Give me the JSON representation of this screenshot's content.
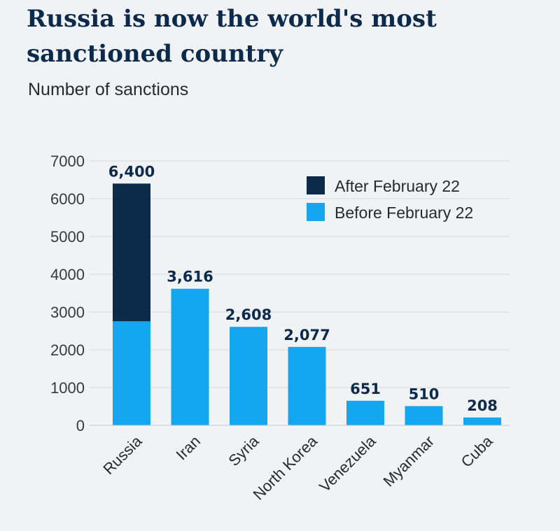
{
  "title": "Russia is now the world's most sanctioned country",
  "subtitle": "Number of sanctions",
  "chart_data": {
    "type": "bar",
    "stacked": true,
    "title": "Russia is now the world's most sanctioned country",
    "ylabel": "Number of sanctions",
    "xlabel": "",
    "ylim": [
      0,
      7000
    ],
    "yticks": [
      0,
      1000,
      2000,
      3000,
      4000,
      5000,
      6000,
      7000
    ],
    "categories": [
      "Russia",
      "Iran",
      "Syria",
      "North Korea",
      "Venezuela",
      "Myanmar",
      "Cuba"
    ],
    "series": [
      {
        "name": "Before February 22",
        "color": "#14a7ef",
        "values": [
          2754,
          3616,
          2608,
          2077,
          651,
          510,
          208
        ]
      },
      {
        "name": "After February 22",
        "color": "#0c2b4b",
        "values": [
          3646,
          0,
          0,
          0,
          0,
          0,
          0
        ]
      }
    ],
    "data_labels": [
      "6,400",
      "3,616",
      "2,608",
      "2,077",
      "651",
      "510",
      "208"
    ],
    "legend": [
      "After February 22",
      "Before February 22"
    ],
    "legend_position": "top-right",
    "grid": true
  }
}
